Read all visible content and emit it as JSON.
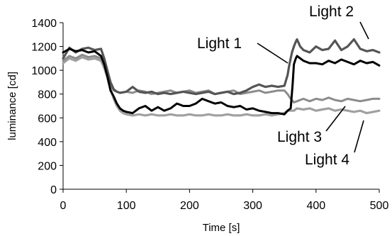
{
  "chart_data": {
    "type": "line",
    "title": "",
    "xlabel": "Time [s]",
    "ylabel": "luminance [cd]",
    "xlim": [
      0,
      500
    ],
    "ylim": [
      0,
      1400
    ],
    "xticks": [
      0,
      100,
      200,
      300,
      400,
      500
    ],
    "yticks": [
      0,
      200,
      400,
      600,
      800,
      1000,
      1200,
      1400
    ],
    "grid": false,
    "legend": "none (series labelled with callout text and leader lines)",
    "series": [
      {
        "name": "Light 1",
        "color": "#000000",
        "x": [
          0,
          10,
          20,
          30,
          40,
          50,
          60,
          65,
          70,
          75,
          80,
          85,
          90,
          95,
          100,
          110,
          120,
          130,
          140,
          150,
          160,
          170,
          180,
          190,
          200,
          210,
          220,
          230,
          240,
          250,
          260,
          270,
          280,
          290,
          300,
          310,
          320,
          330,
          340,
          350,
          355,
          360,
          363,
          365,
          368,
          370,
          380,
          390,
          400,
          410,
          420,
          430,
          440,
          450,
          460,
          470,
          480,
          490,
          500
        ],
        "y": [
          1150,
          1180,
          1160,
          1170,
          1150,
          1160,
          1120,
          1050,
          950,
          830,
          780,
          720,
          680,
          660,
          650,
          640,
          680,
          700,
          660,
          690,
          660,
          680,
          720,
          700,
          700,
          720,
          760,
          740,
          720,
          730,
          700,
          690,
          700,
          670,
          680,
          660,
          650,
          640,
          640,
          630,
          660,
          680,
          880,
          1050,
          1100,
          1120,
          1080,
          1060,
          1060,
          1050,
          1080,
          1060,
          1090,
          1070,
          1050,
          1080,
          1060,
          1070,
          1040
        ]
      },
      {
        "name": "Light 2",
        "color": "#555555",
        "x": [
          0,
          10,
          20,
          30,
          40,
          50,
          60,
          65,
          70,
          75,
          80,
          85,
          90,
          100,
          110,
          120,
          130,
          140,
          150,
          160,
          170,
          180,
          190,
          200,
          210,
          220,
          230,
          240,
          250,
          260,
          270,
          280,
          290,
          300,
          310,
          320,
          330,
          340,
          350,
          355,
          358,
          362,
          365,
          368,
          370,
          375,
          380,
          390,
          400,
          410,
          420,
          430,
          440,
          450,
          460,
          470,
          480,
          490,
          500
        ],
        "y": [
          1100,
          1190,
          1150,
          1180,
          1190,
          1170,
          1180,
          1100,
          1000,
          900,
          840,
          820,
          810,
          820,
          860,
          820,
          810,
          820,
          800,
          810,
          800,
          810,
          820,
          810,
          800,
          810,
          820,
          800,
          810,
          820,
          800,
          810,
          830,
          860,
          880,
          860,
          870,
          860,
          870,
          960,
          1050,
          1150,
          1200,
          1240,
          1260,
          1200,
          1170,
          1150,
          1200,
          1170,
          1180,
          1250,
          1170,
          1200,
          1260,
          1180,
          1160,
          1170,
          1150
        ]
      },
      {
        "name": "Light 3",
        "color": "#8c8c8c",
        "x": [
          0,
          10,
          20,
          30,
          40,
          50,
          60,
          65,
          70,
          75,
          80,
          85,
          90,
          100,
          110,
          120,
          130,
          140,
          150,
          160,
          170,
          180,
          190,
          200,
          210,
          220,
          230,
          240,
          250,
          260,
          270,
          280,
          290,
          300,
          310,
          320,
          330,
          340,
          350,
          355,
          360,
          365,
          370,
          380,
          390,
          400,
          410,
          420,
          430,
          440,
          450,
          460,
          470,
          480,
          490,
          500
        ],
        "y": [
          1080,
          1120,
          1100,
          1130,
          1110,
          1120,
          1100,
          1050,
          980,
          880,
          830,
          820,
          810,
          820,
          810,
          830,
          820,
          800,
          810,
          820,
          830,
          810,
          820,
          830,
          810,
          820,
          830,
          800,
          810,
          820,
          830,
          800,
          810,
          820,
          830,
          810,
          820,
          830,
          830,
          800,
          760,
          730,
          740,
          760,
          740,
          760,
          750,
          770,
          750,
          740,
          760,
          750,
          740,
          750,
          760,
          760
        ]
      },
      {
        "name": "Light 4",
        "color": "#a0a0a0",
        "x": [
          0,
          10,
          20,
          30,
          40,
          50,
          60,
          65,
          70,
          75,
          80,
          85,
          90,
          95,
          100,
          110,
          120,
          130,
          140,
          150,
          160,
          170,
          180,
          190,
          200,
          210,
          220,
          230,
          240,
          250,
          260,
          270,
          280,
          290,
          300,
          310,
          320,
          330,
          340,
          350,
          355,
          360,
          365,
          370,
          380,
          390,
          400,
          410,
          420,
          430,
          440,
          450,
          460,
          470,
          480,
          490,
          500
        ],
        "y": [
          1060,
          1100,
          1080,
          1110,
          1090,
          1100,
          1080,
          1020,
          940,
          840,
          760,
          700,
          660,
          640,
          630,
          620,
          630,
          620,
          630,
          620,
          620,
          630,
          620,
          620,
          630,
          620,
          620,
          630,
          620,
          620,
          630,
          620,
          620,
          630,
          620,
          620,
          630,
          620,
          630,
          640,
          660,
          660,
          660,
          680,
          670,
          680,
          660,
          670,
          680,
          660,
          670,
          660,
          650,
          660,
          640,
          650,
          660
        ]
      }
    ],
    "annotations": [
      {
        "text": "Light 1",
        "series": "Light 1"
      },
      {
        "text": "Light 2",
        "series": "Light 2"
      },
      {
        "text": "Light 3",
        "series": "Light 3"
      },
      {
        "text": "Light 4",
        "series": "Light 4"
      }
    ]
  }
}
